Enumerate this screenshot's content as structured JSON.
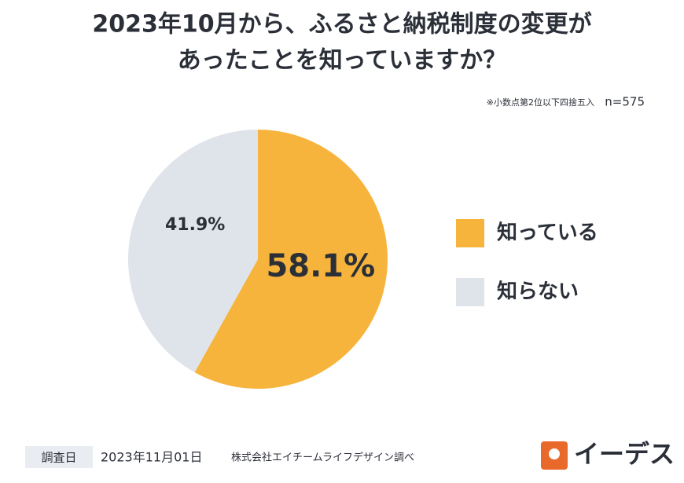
{
  "chart_data": {
    "type": "pie",
    "title": [
      "2023年10月から、ふるさと納税制度の変更が",
      "あったことを知っていますか？"
    ],
    "note": "※小数点第2位以下四捨五入",
    "sample_size": "n=575",
    "categories": [
      "知っている",
      "知らない"
    ],
    "values": [
      58.1,
      41.9
    ],
    "value_labels": [
      "58.1%",
      "41.9%"
    ],
    "colors": [
      "#f7b43c",
      "#dfe3ea"
    ]
  },
  "footer": {
    "survey_label": "調査日",
    "date": "2023年11月01日",
    "source": "株式会社エイチームライフデザイン調べ",
    "logo": "イーデス"
  }
}
